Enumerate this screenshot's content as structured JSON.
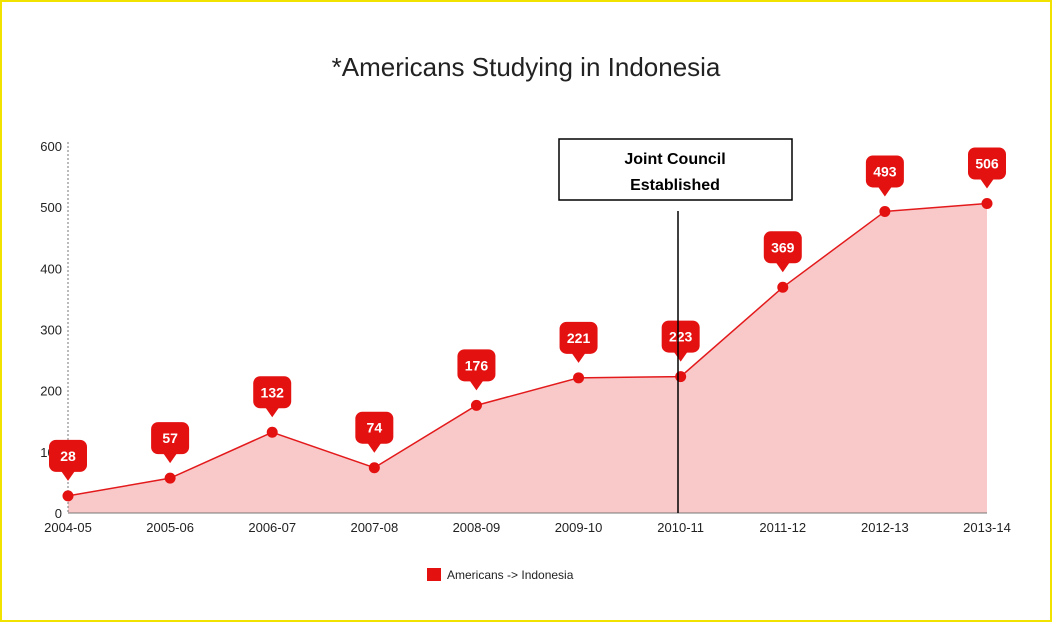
{
  "chart_data": {
    "type": "area",
    "title": "*Americans Studying in Indonesia",
    "categories": [
      "2004-05",
      "2005-06",
      "2006-07",
      "2007-08",
      "2008-09",
      "2009-10",
      "2010-11",
      "2011-12",
      "2012-13",
      "2013-14"
    ],
    "series": [
      {
        "name": "Americans -> Indonesia",
        "values": [
          28,
          57,
          132,
          74,
          176,
          221,
          223,
          369,
          493,
          506
        ]
      }
    ],
    "data_labels": [
      "28",
      "57",
      "132",
      "74",
      "176",
      "221",
      "223",
      "369",
      "493",
      "506"
    ],
    "y_ticks": [
      "0",
      "100",
      "200",
      "300",
      "400",
      "500",
      "600"
    ],
    "ylim": [
      0,
      600
    ],
    "legend_position": "bottom",
    "grid": false,
    "colors": {
      "line": "#e31a1c",
      "fill": "#f9c9c9",
      "label_bg": "#e41111"
    },
    "annotation": {
      "line1": "Joint Council",
      "line2": "Established",
      "category": "2010-11"
    }
  }
}
